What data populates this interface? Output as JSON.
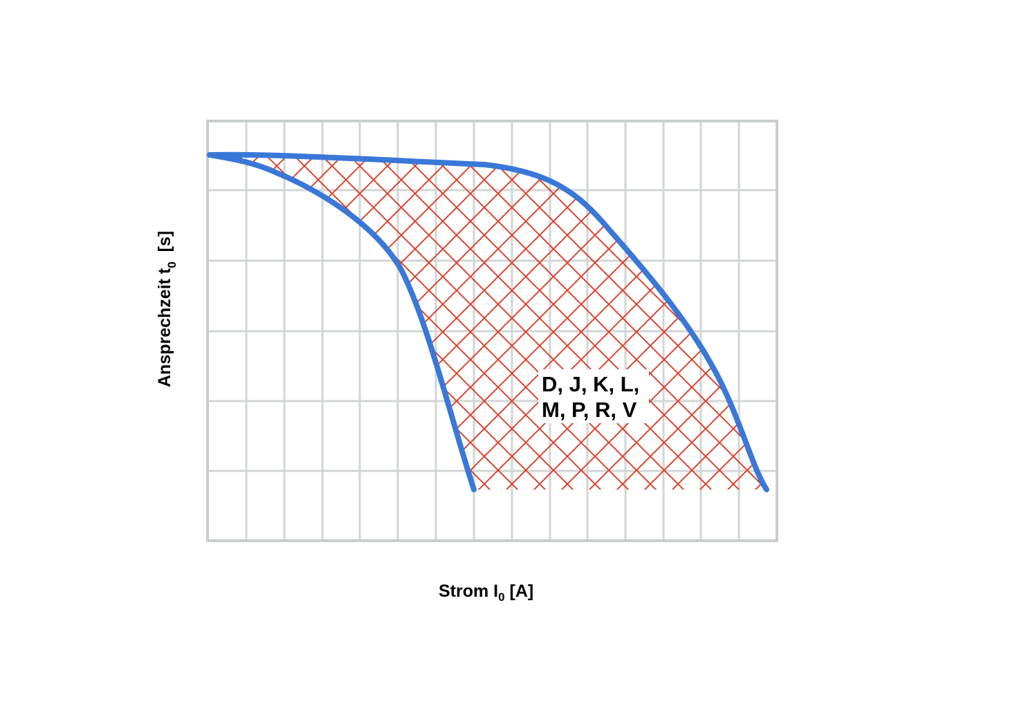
{
  "chart_data": {
    "type": "area",
    "title": "",
    "xlabel": {
      "main": "Strom I",
      "subscript": "0",
      "unit": " [A]"
    },
    "ylabel": {
      "main": "Ansprechzeit t",
      "subscript": "0",
      "unit": "  [s]"
    },
    "x_ticks": [],
    "y_ticks": [],
    "grid": true,
    "legend": "none",
    "region_label": [
      "D, J, K, L,",
      "M, P, R, V"
    ],
    "colors": {
      "curve": "#3a78d8",
      "hatch": "#d9442f",
      "grid": "#d2d6d6",
      "frame": "#c9cdcd",
      "text": "#000000"
    }
  }
}
